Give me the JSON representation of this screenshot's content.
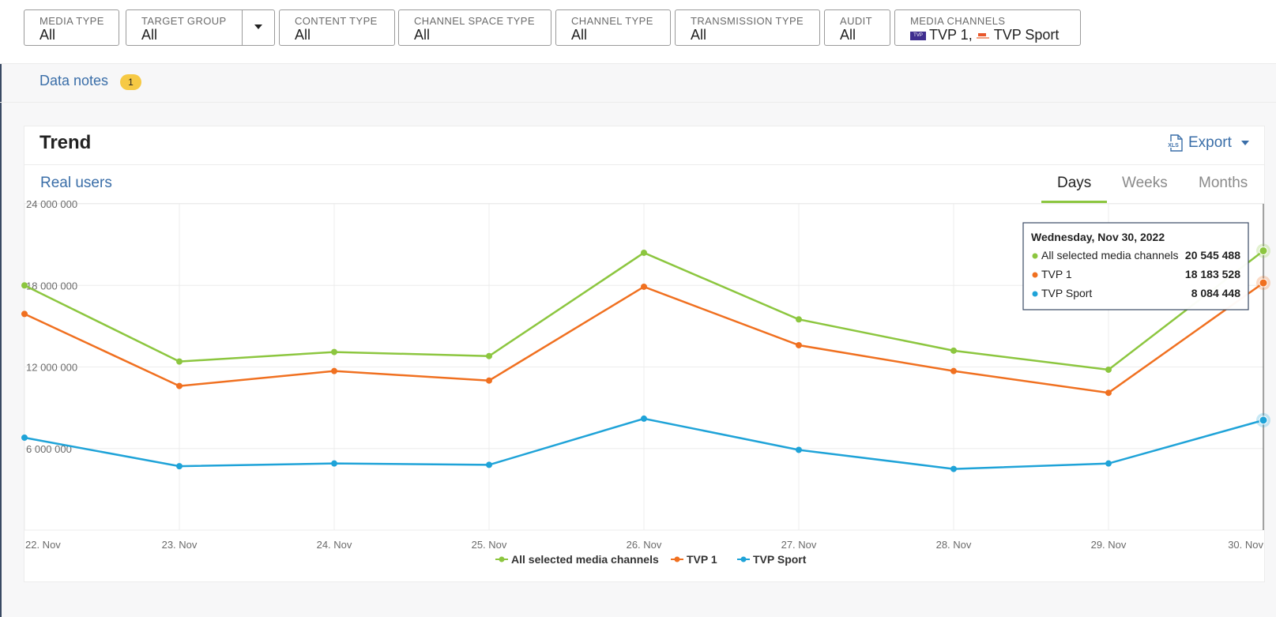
{
  "filters": [
    {
      "label": "MEDIA TYPE",
      "value": "All"
    },
    {
      "label": "TARGET GROUP",
      "value": "All"
    },
    {
      "label": "CONTENT TYPE",
      "value": "All"
    },
    {
      "label": "CHANNEL SPACE TYPE",
      "value": "All"
    },
    {
      "label": "CHANNEL TYPE",
      "value": "All"
    },
    {
      "label": "TRANSMISSION TYPE",
      "value": "All"
    },
    {
      "label": "AUDIT",
      "value": "All"
    },
    {
      "label": "MEDIA CHANNELS",
      "value": "TVP 1, TVP Sport",
      "logo_1_text": "TVP",
      "channel_1": "TVP 1,",
      "channel_2": "TVP Sport"
    }
  ],
  "notes": {
    "label": "Data notes",
    "count": "1"
  },
  "card": {
    "title": "Trend",
    "export_label": "Export",
    "export_icon": "xls-file-icon",
    "metric": "Real users",
    "tabs": [
      {
        "label": "Days"
      },
      {
        "label": "Weeks"
      },
      {
        "label": "Months"
      }
    ],
    "active_tab": "Days"
  },
  "tooltip": {
    "date": "Wednesday, Nov 30, 2022",
    "rows": [
      {
        "name": "All selected media channels",
        "value": "20 545 488"
      },
      {
        "name": "TVP 1",
        "value": "18 183 528"
      },
      {
        "name": "TVP Sport",
        "value": "8 084 448"
      }
    ]
  },
  "colors": {
    "all": "#8cc63f",
    "tvp1": "#f07020",
    "sport": "#1fa3d8",
    "link": "#3a6ea8"
  },
  "chart_data": {
    "type": "line",
    "x": [
      "22. Nov",
      "23. Nov",
      "24. Nov",
      "25. Nov",
      "26. Nov",
      "27. Nov",
      "28. Nov",
      "29. Nov",
      "30. Nov"
    ],
    "y_ticks": [
      "24 000 000",
      "18 000 000",
      "12 000 000",
      "6 000 000"
    ],
    "ylim": [
      0,
      24000000
    ],
    "grid": true,
    "legend": "bottom-center",
    "series": [
      {
        "name": "All selected media channels",
        "values": [
          18000000,
          12400000,
          13100000,
          12800000,
          20400000,
          15500000,
          13200000,
          11800000,
          20545488
        ]
      },
      {
        "name": "TVP 1",
        "values": [
          15900000,
          10600000,
          11700000,
          11000000,
          17900000,
          13600000,
          11700000,
          10100000,
          18183528
        ]
      },
      {
        "name": "TVP Sport",
        "values": [
          6800000,
          4700000,
          4900000,
          4800000,
          8200000,
          5900000,
          4500000,
          4900000,
          8084448
        ]
      }
    ]
  }
}
